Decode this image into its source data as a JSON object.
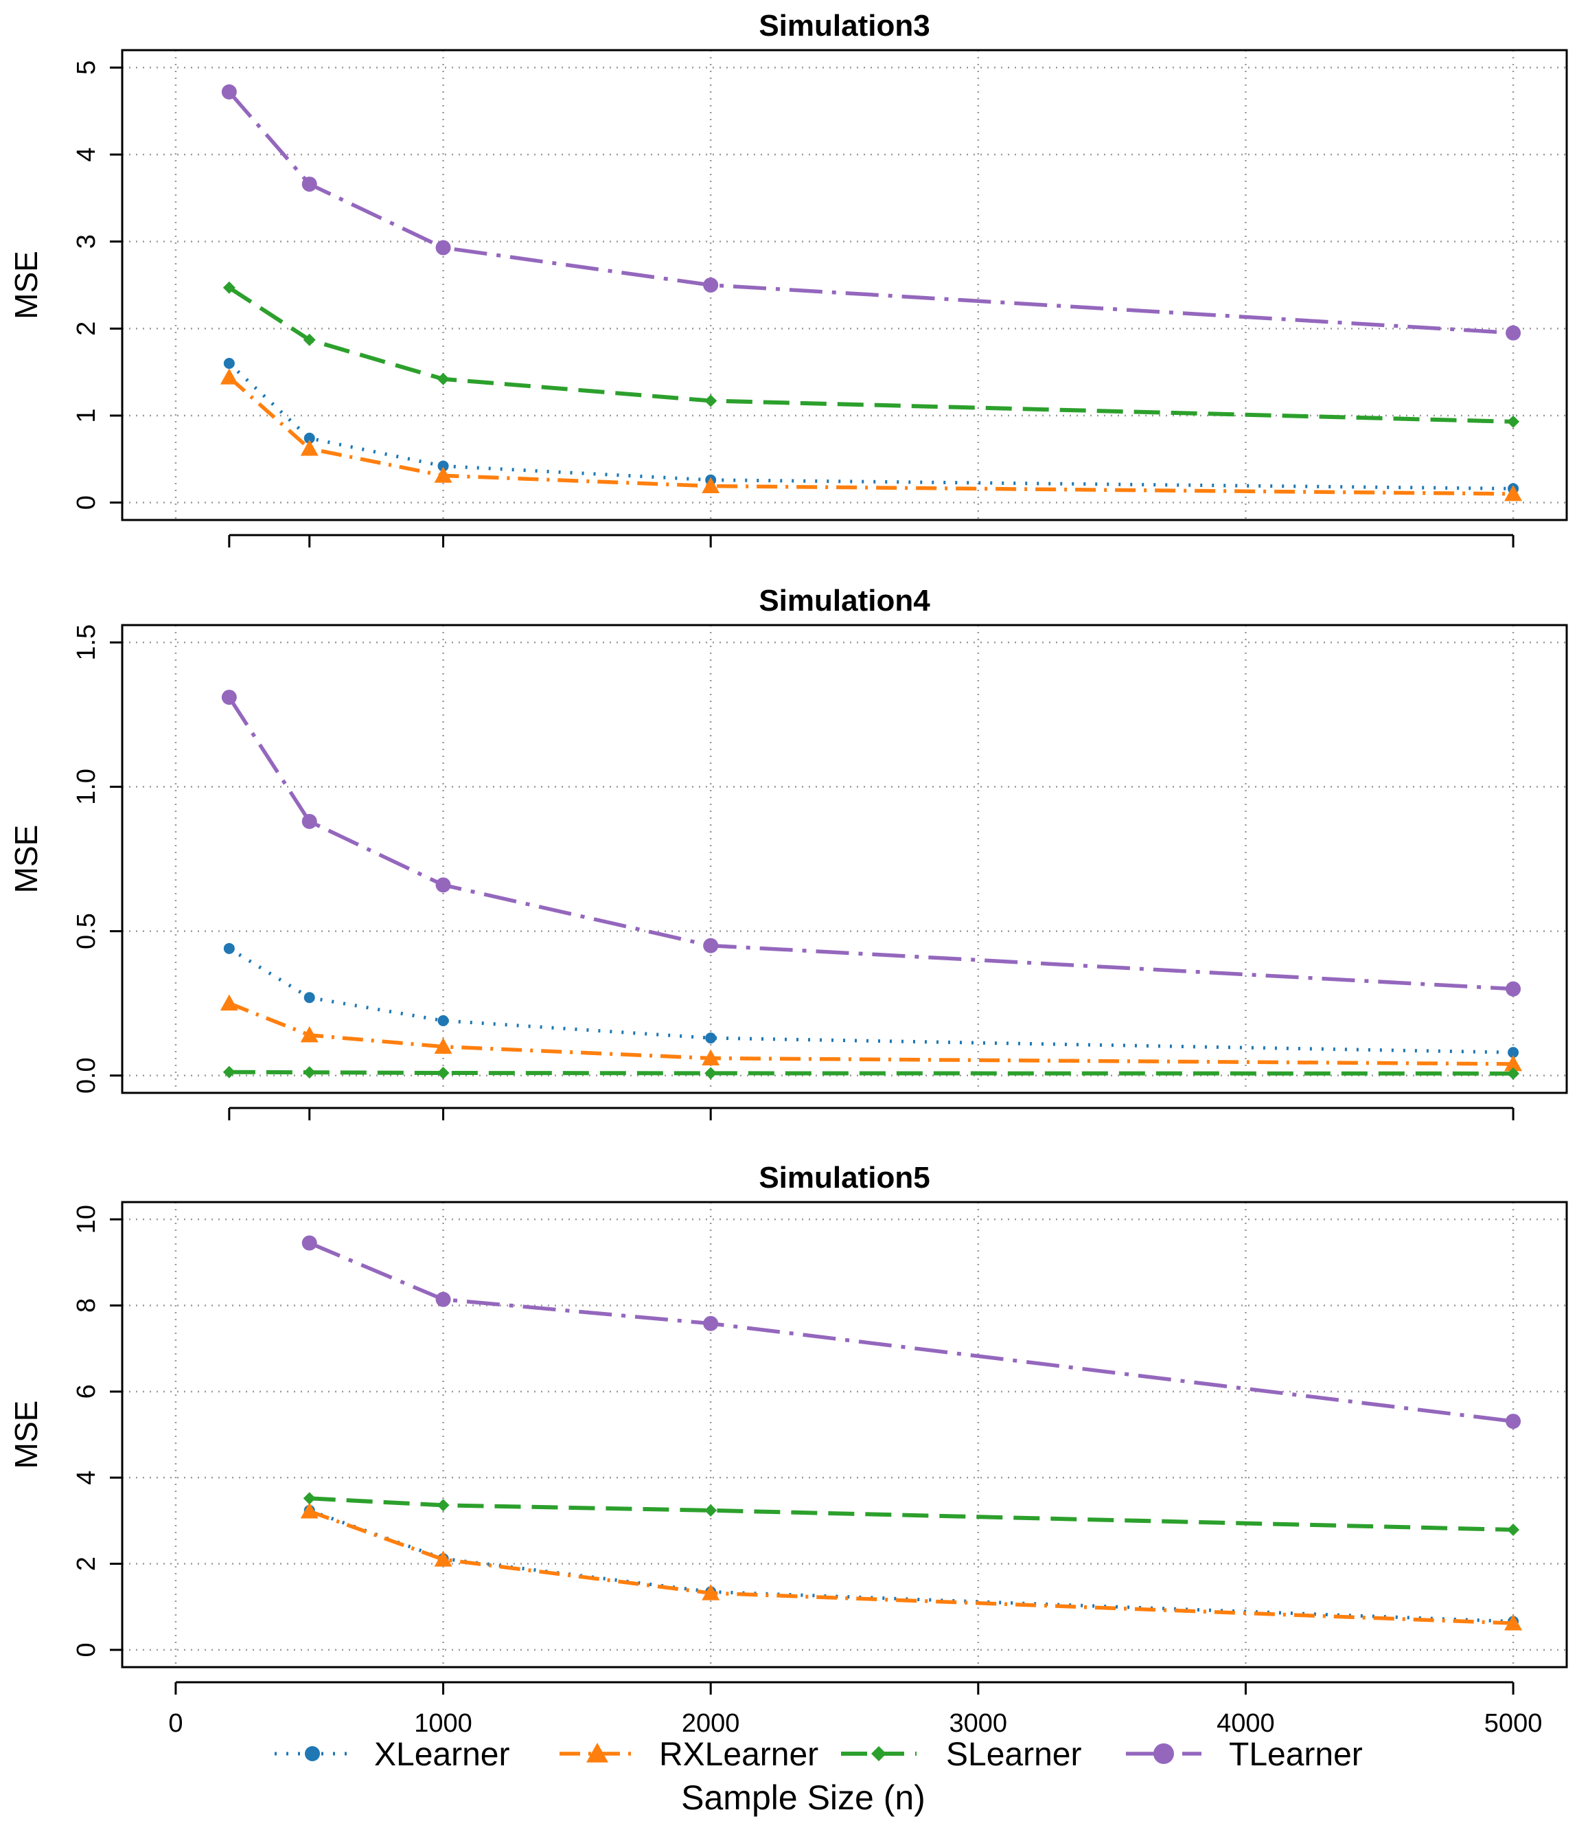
{
  "colors": {
    "XLearner": "#1f77b4",
    "RXLearner": "#ff7f0e",
    "SLearner": "#2ca02c",
    "TLearner": "#9467bd"
  },
  "legend": [
    "XLearner",
    "RXLearner",
    "SLearner",
    "TLearner"
  ],
  "xlabel": "Sample Size (n)",
  "x_ticks": [
    0,
    1000,
    2000,
    3000,
    4000,
    5000
  ],
  "chart_data": [
    {
      "type": "line",
      "title": "Simulation3",
      "ylabel": "MSE",
      "xlim": [
        -200,
        5200
      ],
      "ylim": [
        -0.2,
        5.2
      ],
      "y_ticks": [
        "0",
        "1",
        "2",
        "3",
        "4",
        "5"
      ],
      "y_tick_values": [
        0,
        1,
        2,
        3,
        4,
        5
      ],
      "series": [
        {
          "name": "XLearner",
          "x": [
            200,
            500,
            1000,
            2000,
            5000
          ],
          "values": [
            1.6,
            0.74,
            0.42,
            0.26,
            0.16
          ]
        },
        {
          "name": "RXLearner",
          "x": [
            200,
            500,
            1000,
            2000,
            5000
          ],
          "values": [
            1.44,
            0.62,
            0.31,
            0.19,
            0.1
          ]
        },
        {
          "name": "SLearner",
          "x": [
            200,
            500,
            1000,
            2000,
            5000
          ],
          "values": [
            2.47,
            1.87,
            1.42,
            1.17,
            0.93
          ]
        },
        {
          "name": "TLearner",
          "x": [
            200,
            500,
            1000,
            2000,
            5000
          ],
          "values": [
            4.72,
            3.66,
            2.93,
            2.5,
            1.95
          ]
        }
      ]
    },
    {
      "type": "line",
      "title": "Simulation4",
      "ylabel": "MSE",
      "xlim": [
        -200,
        5200
      ],
      "ylim": [
        -0.06,
        1.56
      ],
      "y_ticks": [
        "0.0",
        "0.5",
        "1.0",
        "1.5"
      ],
      "y_tick_values": [
        0,
        0.5,
        1.0,
        1.5
      ],
      "series": [
        {
          "name": "XLearner",
          "x": [
            200,
            500,
            1000,
            2000,
            5000
          ],
          "values": [
            0.44,
            0.27,
            0.19,
            0.13,
            0.08
          ]
        },
        {
          "name": "RXLearner",
          "x": [
            200,
            500,
            1000,
            2000,
            5000
          ],
          "values": [
            0.25,
            0.14,
            0.1,
            0.06,
            0.04
          ]
        },
        {
          "name": "SLearner",
          "x": [
            200,
            500,
            1000,
            2000,
            5000
          ],
          "values": [
            0.012,
            0.011,
            0.009,
            0.008,
            0.007
          ]
        },
        {
          "name": "TLearner",
          "x": [
            200,
            500,
            1000,
            2000,
            5000
          ],
          "values": [
            1.31,
            0.88,
            0.66,
            0.45,
            0.3
          ]
        }
      ]
    },
    {
      "type": "line",
      "title": "Simulation5",
      "ylabel": "MSE",
      "xlim": [
        -200,
        5200
      ],
      "ylim": [
        -0.4,
        10.4
      ],
      "y_ticks": [
        "0",
        "2",
        "4",
        "6",
        "8",
        "10"
      ],
      "y_tick_values": [
        0,
        2,
        4,
        6,
        8,
        10
      ],
      "series": [
        {
          "name": "XLearner",
          "x": [
            500,
            1000,
            2000,
            5000
          ],
          "values": [
            3.24,
            2.12,
            1.35,
            0.66
          ]
        },
        {
          "name": "RXLearner",
          "x": [
            500,
            1000,
            2000,
            5000
          ],
          "values": [
            3.22,
            2.1,
            1.32,
            0.62
          ]
        },
        {
          "name": "SLearner",
          "x": [
            500,
            1000,
            2000,
            5000
          ],
          "values": [
            3.52,
            3.36,
            3.24,
            2.79
          ]
        },
        {
          "name": "TLearner",
          "x": [
            500,
            1000,
            2000,
            5000
          ],
          "values": [
            9.45,
            8.14,
            7.58,
            5.31
          ]
        }
      ]
    }
  ]
}
